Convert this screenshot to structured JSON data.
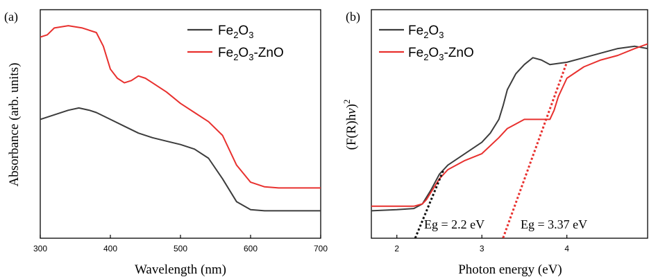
{
  "colors": {
    "fe2o3": "#3c3c3c",
    "fe2o3_zno": "#e8302e",
    "axis": "#000000",
    "fit_black": "#111111"
  },
  "chart_data": [
    {
      "type": "line",
      "panel_label": "(a)",
      "xlabel": "Wavelength (nm)",
      "ylabel": "Absorbance (arb. units)",
      "xlim": [
        300,
        700
      ],
      "ylim": [
        0,
        1.0
      ],
      "x_ticks": [
        "300",
        "400",
        "500",
        "600",
        "700"
      ],
      "legend_position": "top-right",
      "series": [
        {
          "name_parts": [
            "Fe",
            "2",
            "O",
            "3"
          ],
          "color": "#3c3c3c",
          "x": [
            300,
            320,
            340,
            355,
            370,
            380,
            400,
            420,
            440,
            460,
            480,
            500,
            520,
            540,
            560,
            580,
            600,
            620,
            640,
            660,
            680,
            700
          ],
          "y": [
            0.52,
            0.54,
            0.56,
            0.57,
            0.56,
            0.55,
            0.52,
            0.49,
            0.46,
            0.44,
            0.425,
            0.41,
            0.39,
            0.35,
            0.26,
            0.16,
            0.125,
            0.12,
            0.12,
            0.12,
            0.12,
            0.12
          ]
        },
        {
          "name_parts": [
            "Fe",
            "2",
            "O",
            "3",
            "-ZnO"
          ],
          "color": "#e8302e",
          "x": [
            300,
            310,
            320,
            340,
            360,
            380,
            390,
            400,
            410,
            420,
            430,
            440,
            450,
            460,
            480,
            500,
            520,
            540,
            560,
            580,
            600,
            620,
            640,
            660,
            680,
            700
          ],
          "y": [
            0.88,
            0.89,
            0.92,
            0.93,
            0.92,
            0.9,
            0.84,
            0.74,
            0.7,
            0.68,
            0.69,
            0.71,
            0.7,
            0.68,
            0.64,
            0.59,
            0.55,
            0.51,
            0.45,
            0.32,
            0.245,
            0.225,
            0.22,
            0.22,
            0.22,
            0.22
          ]
        }
      ]
    },
    {
      "type": "line",
      "panel_label": "(b)",
      "xlabel": "Photon energy (eV)",
      "ylabel_main": "(F(R)h",
      "ylabel_italic": "ν",
      "ylabel_close": ")",
      "ylabel_sup": "2",
      "xlim": [
        1.7,
        4.95
      ],
      "ylim": [
        0,
        1.0
      ],
      "x_ticks": [
        "2",
        "3",
        "4"
      ],
      "legend_position": "top-left",
      "annotations": [
        "Eg = 2.2 eV",
        "Eg = 3.37 eV"
      ],
      "series": [
        {
          "name_parts": [
            "Fe",
            "2",
            "O",
            "3"
          ],
          "color": "#3c3c3c",
          "x": [
            1.7,
            2.0,
            2.2,
            2.3,
            2.4,
            2.5,
            2.6,
            2.8,
            3.0,
            3.1,
            3.2,
            3.25,
            3.3,
            3.4,
            3.5,
            3.6,
            3.7,
            3.8,
            4.0,
            4.2,
            4.4,
            4.6,
            4.8,
            4.95
          ],
          "y": [
            0.12,
            0.125,
            0.13,
            0.15,
            0.21,
            0.28,
            0.32,
            0.37,
            0.42,
            0.46,
            0.52,
            0.58,
            0.65,
            0.72,
            0.76,
            0.79,
            0.78,
            0.76,
            0.77,
            0.79,
            0.81,
            0.83,
            0.84,
            0.83
          ]
        },
        {
          "name_parts": [
            "Fe",
            "2",
            "O",
            "3",
            "-ZnO"
          ],
          "color": "#e8302e",
          "x": [
            1.7,
            2.0,
            2.2,
            2.3,
            2.35,
            2.4,
            2.5,
            2.6,
            2.8,
            3.0,
            3.2,
            3.3,
            3.4,
            3.5,
            3.6,
            3.7,
            3.8,
            3.85,
            3.9,
            4.0,
            4.2,
            4.4,
            4.6,
            4.8,
            4.95
          ],
          "y": [
            0.14,
            0.14,
            0.14,
            0.15,
            0.17,
            0.2,
            0.26,
            0.3,
            0.34,
            0.37,
            0.44,
            0.48,
            0.5,
            0.52,
            0.52,
            0.52,
            0.52,
            0.56,
            0.62,
            0.7,
            0.75,
            0.78,
            0.8,
            0.83,
            0.85
          ]
        }
      ],
      "fits": [
        {
          "color": "#111111",
          "x": [
            2.16,
            2.55
          ],
          "y": [
            -0.05,
            0.3
          ]
        },
        {
          "color": "#e8302e",
          "x": [
            3.2,
            4.0
          ],
          "y": [
            -0.05,
            0.77
          ]
        }
      ]
    }
  ]
}
